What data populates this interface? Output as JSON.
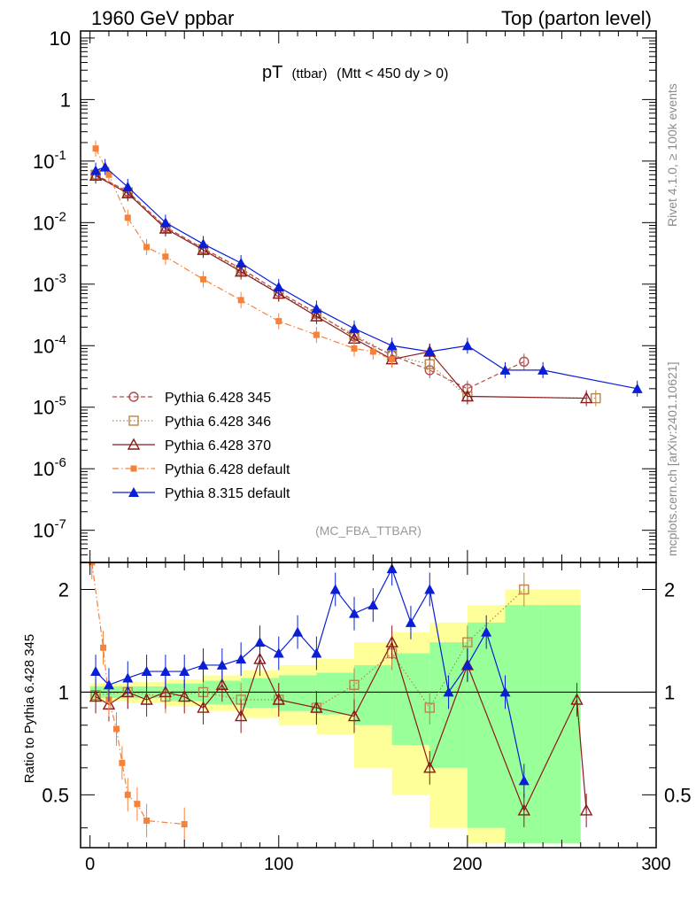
{
  "header": {
    "left": "1960 GeV ppbar",
    "right": "Top (parton level)"
  },
  "title": {
    "main": "pT",
    "sub": "(ttbar)",
    "cut": "(Mtt < 450 dy > 0)"
  },
  "side_labels": {
    "rivet": "Rivet 4.1.0, ≥ 100k events",
    "site": "mcplots.cern.ch [arXiv:2401.10621]"
  },
  "analysis_tag": "(MC_FBA_TTBAR)",
  "ratio_ylabel": "Ratio to Pythia 6.428 345",
  "colors": {
    "p345": "#b44a4a",
    "p346": "#b8864a",
    "p370": "#8b1a1a",
    "pdef6": "#f5823a",
    "pdef8": "#0a1ed6",
    "band_yellow": "#ffff99",
    "band_green": "#99ff99"
  },
  "chart_data": [
    {
      "type": "scatter",
      "panel": "main",
      "xlabel": "",
      "ylabel": "",
      "xlim": [
        -5,
        300
      ],
      "ylim": [
        3e-08,
        13
      ],
      "yscale": "log",
      "x_ticks": [
        0,
        100,
        200,
        300
      ],
      "y_ticks": [
        {
          "value": 1e-07,
          "label": "10",
          "exp": "-7"
        },
        {
          "value": 1e-06,
          "label": "10",
          "exp": "-6"
        },
        {
          "value": 1e-05,
          "label": "10",
          "exp": "-5"
        },
        {
          "value": 0.0001,
          "label": "10",
          "exp": "-4"
        },
        {
          "value": 0.001,
          "label": "10",
          "exp": "-3"
        },
        {
          "value": 0.01,
          "label": "10",
          "exp": "-2"
        },
        {
          "value": 0.1,
          "label": "10",
          "exp": "-1"
        },
        {
          "value": 1,
          "label": "1",
          "exp": ""
        },
        {
          "value": 10,
          "label": "10",
          "exp": ""
        }
      ],
      "legend_position": "lower-left",
      "series": [
        {
          "name": "Pythia 6.428 345",
          "key": "p345",
          "marker": "circle-open",
          "line": "dashed",
          "x": [
            3,
            20,
            40,
            60,
            80,
            100,
            120,
            140,
            160,
            180,
            200,
            230
          ],
          "y": [
            0.06,
            0.032,
            0.0085,
            0.0038,
            0.0018,
            0.00075,
            0.00034,
            0.00014,
            7e-05,
            4e-05,
            2e-05,
            5.5e-05
          ]
        },
        {
          "name": "Pythia 6.428 346",
          "key": "p346",
          "marker": "square-open",
          "line": "dotted",
          "x": [
            3,
            20,
            40,
            60,
            80,
            100,
            120,
            140,
            160,
            180,
            200,
            268
          ],
          "y": [
            0.06,
            0.031,
            0.0082,
            0.0037,
            0.0017,
            0.0007,
            0.00033,
            0.00015,
            7e-05,
            5e-05,
            1.5e-05,
            1.4e-05
          ]
        },
        {
          "name": "Pythia 6.428 370",
          "key": "p370",
          "marker": "triangle-open",
          "line": "solid",
          "x": [
            3,
            20,
            40,
            60,
            80,
            100,
            120,
            140,
            160,
            180,
            200,
            263
          ],
          "y": [
            0.058,
            0.03,
            0.008,
            0.0036,
            0.0016,
            0.0007,
            0.0003,
            0.00013,
            6e-05,
            8e-05,
            1.5e-05,
            1.4e-05
          ]
        },
        {
          "name": "Pythia 6.428 default",
          "key": "pdef6",
          "marker": "square-filled",
          "line": "dashdot",
          "x": [
            3,
            10,
            20,
            30,
            40,
            60,
            80,
            100,
            120,
            140,
            150,
            160
          ],
          "y": [
            0.16,
            0.06,
            0.012,
            0.004,
            0.0028,
            0.0012,
            0.00055,
            0.00025,
            0.00015,
            9e-05,
            8e-05,
            6e-05
          ]
        },
        {
          "name": "Pythia 8.315 default",
          "key": "pdef8",
          "marker": "triangle-filled",
          "line": "solid",
          "x": [
            3,
            8,
            20,
            40,
            60,
            80,
            100,
            120,
            140,
            160,
            180,
            200,
            220,
            240,
            290
          ],
          "y": [
            0.07,
            0.08,
            0.038,
            0.01,
            0.0045,
            0.0022,
            0.0009,
            0.0004,
            0.00019,
            0.0001,
            8e-05,
            0.0001,
            4e-05,
            4e-05,
            2e-05
          ]
        }
      ]
    },
    {
      "type": "scatter",
      "panel": "ratio",
      "xlim": [
        -5,
        300
      ],
      "ylim": [
        0.35,
        2.4
      ],
      "yscale": "log",
      "x_ticks": [
        0,
        100,
        200,
        300
      ],
      "y_ticks": [
        0.5,
        1,
        2
      ],
      "reference_line": 1,
      "series": [
        {
          "name": "Pythia 6.428 345",
          "key": "p345",
          "y": [
            1.0,
            1.0,
            1.0,
            1.0,
            1.0,
            1.0,
            1.0,
            1.0,
            1.0,
            1.0,
            1.0,
            1.0
          ]
        },
        {
          "name": "Pythia 6.428 346",
          "key": "p346",
          "x": [
            3,
            20,
            40,
            60,
            80,
            100,
            120,
            140,
            160,
            180,
            200,
            230
          ],
          "y": [
            0.98,
            1.0,
            0.97,
            1.0,
            0.95,
            0.95,
            0.9,
            1.05,
            1.3,
            0.9,
            1.4,
            2.0
          ]
        },
        {
          "name": "Pythia 6.428 370",
          "key": "p370",
          "x": [
            3,
            10,
            20,
            30,
            40,
            50,
            60,
            70,
            80,
            90,
            100,
            120,
            140,
            160,
            180,
            200,
            230,
            258,
            263
          ],
          "y": [
            0.97,
            0.92,
            1.0,
            0.95,
            1.0,
            0.97,
            0.9,
            1.05,
            0.85,
            1.25,
            0.95,
            0.9,
            0.85,
            1.4,
            0.6,
            1.2,
            0.45,
            0.95,
            0.45
          ]
        },
        {
          "name": "Pythia 6.428 default",
          "key": "pdef6",
          "x": [
            1,
            7,
            10,
            14,
            17,
            20,
            25,
            30,
            50
          ],
          "y": [
            2.4,
            1.35,
            0.95,
            0.78,
            0.62,
            0.5,
            0.47,
            0.42,
            0.41
          ]
        },
        {
          "name": "Pythia 8.315 default",
          "key": "pdef8",
          "x": [
            3,
            10,
            20,
            30,
            40,
            50,
            60,
            70,
            80,
            90,
            100,
            110,
            120,
            130,
            140,
            150,
            160,
            170,
            180,
            190,
            200,
            210,
            220,
            230
          ],
          "y": [
            1.15,
            1.05,
            1.1,
            1.15,
            1.15,
            1.15,
            1.2,
            1.2,
            1.25,
            1.4,
            1.3,
            1.5,
            1.3,
            2.0,
            1.7,
            1.8,
            2.3,
            1.6,
            2.0,
            1.0,
            1.2,
            1.5,
            1.0,
            0.55
          ]
        }
      ],
      "bands": {
        "x": [
          0,
          20,
          40,
          60,
          80,
          100,
          120,
          140,
          160,
          180,
          200,
          220,
          240,
          260
        ],
        "green": [
          0.04,
          0.04,
          0.06,
          0.08,
          0.1,
          0.12,
          0.14,
          0.2,
          0.3,
          0.4,
          0.6,
          0.8,
          0.8,
          0.8
        ],
        "yellow": [
          0.06,
          0.07,
          0.09,
          0.12,
          0.16,
          0.2,
          0.25,
          0.4,
          0.5,
          0.6,
          0.8,
          1.0,
          1.0,
          1.0
        ]
      }
    }
  ]
}
